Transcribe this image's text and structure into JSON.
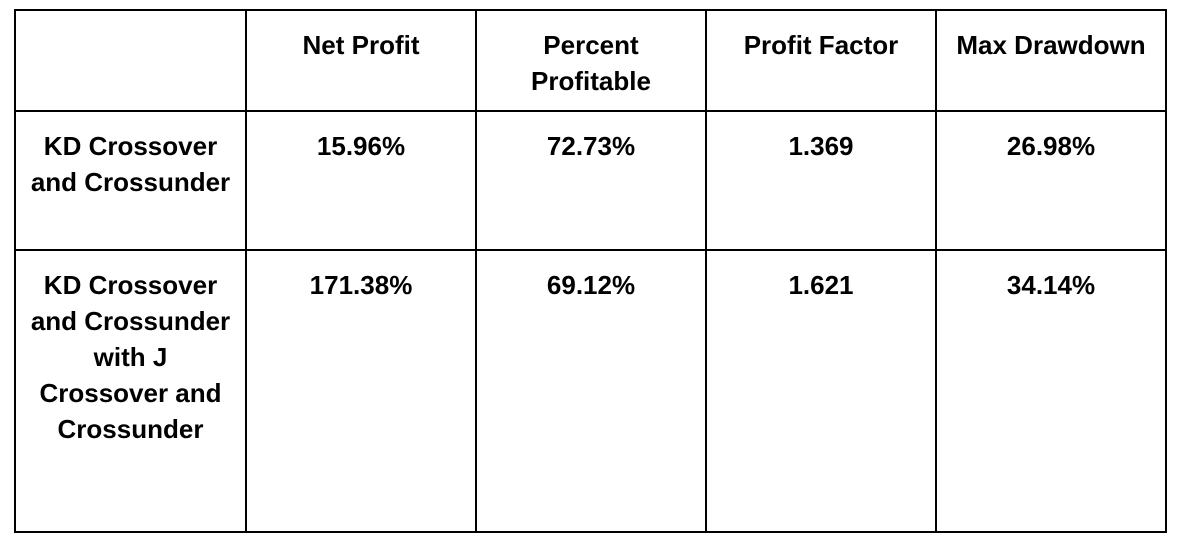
{
  "table": {
    "headers": [
      "",
      "Net Profit",
      "Percent Profitable",
      "Profit Factor",
      "Max Drawdown"
    ],
    "rows": [
      {
        "strategy": "KD Crossover and Crossunder",
        "net_profit": "15.96%",
        "percent_profitable": "72.73%",
        "profit_factor": "1.369",
        "max_drawdown": "26.98%"
      },
      {
        "strategy": "KD Crossover and Crossunder with J Crossover and Crossunder",
        "net_profit": "171.38%",
        "percent_profitable": "69.12%",
        "profit_factor": "1.621",
        "max_drawdown": "34.14%"
      }
    ]
  }
}
